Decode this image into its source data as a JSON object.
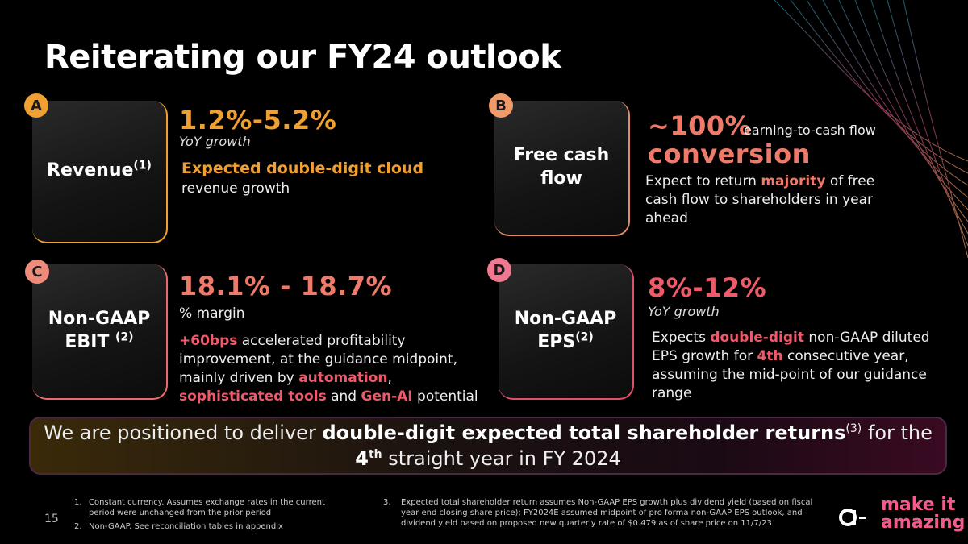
{
  "title": "Reiterating our FY24 outlook",
  "page_number": "15",
  "colors": {
    "orange": "#f0a030",
    "coral": "#f07a6a",
    "red": "#ef5a6a",
    "pink": "#f45a8a"
  },
  "sections": {
    "a": {
      "badge": "A",
      "card_label": "Revenue",
      "card_sup": "(1)",
      "value": "1.2%-5.2%",
      "sub": "YoY growth",
      "highlight": "Expected double-digit cloud",
      "text": "revenue growth"
    },
    "b": {
      "badge": "B",
      "card_label_1": "Free cash",
      "card_label_2": "flow",
      "value": "~100%",
      "value_suffix": "earning-to-cash flow",
      "value_line2": "conversion",
      "text_1": "Expect to return ",
      "text_hl": "majority",
      "text_2": " of free cash flow to shareholders in year ahead"
    },
    "c": {
      "badge": "C",
      "card_label_1": "Non-GAAP",
      "card_label_2": "EBIT ",
      "card_sup": "(2)",
      "value": "18.1% - 18.7%",
      "sub": "% margin",
      "hl_1": "+60bps",
      "text_1": "  accelerated profitability improvement, at the guidance midpoint, mainly driven by ",
      "hl_2": "automation",
      "text_2": ", ",
      "hl_3": "sophisticated tools",
      "text_3": " and ",
      "hl_4": "Gen-AI",
      "text_4": " potential"
    },
    "d": {
      "badge": "D",
      "card_label_1": "Non-GAAP",
      "card_label_2": "EPS",
      "card_sup": "(2)",
      "value": "8%-12%",
      "sub": "YoY growth",
      "text_1": "Expects ",
      "hl_1": "double-digit",
      "text_2": " non-GAAP diluted EPS growth for ",
      "hl_2": "4th",
      "text_3": " consecutive year, assuming the mid-point of our guidance range"
    }
  },
  "banner": {
    "text_1": "We are positioned to deliver ",
    "bold_1": "double-digit expected total shareholder returns",
    "sup": "(3)",
    "text_2": " for the ",
    "bold_2": "4",
    "sup_2": "th",
    "text_3": " straight year in FY 2024"
  },
  "footnotes": {
    "n1": "Constant currency. Assumes exchange rates in the current period were unchanged from the prior period",
    "n2": "Non-GAAP. See reconciliation tables in appendix",
    "n3": "Expected total shareholder return assumes Non-GAAP EPS growth plus dividend yield (based on fiscal year end closing share price); FY2024E assumed midpoint of pro forma non-GAAP EPS outlook, and dividend yield based on proposed new quarterly rate of $0.479 as of share price on 11/7/23"
  },
  "logo": {
    "line1": "make it",
    "line2": "amazing"
  }
}
